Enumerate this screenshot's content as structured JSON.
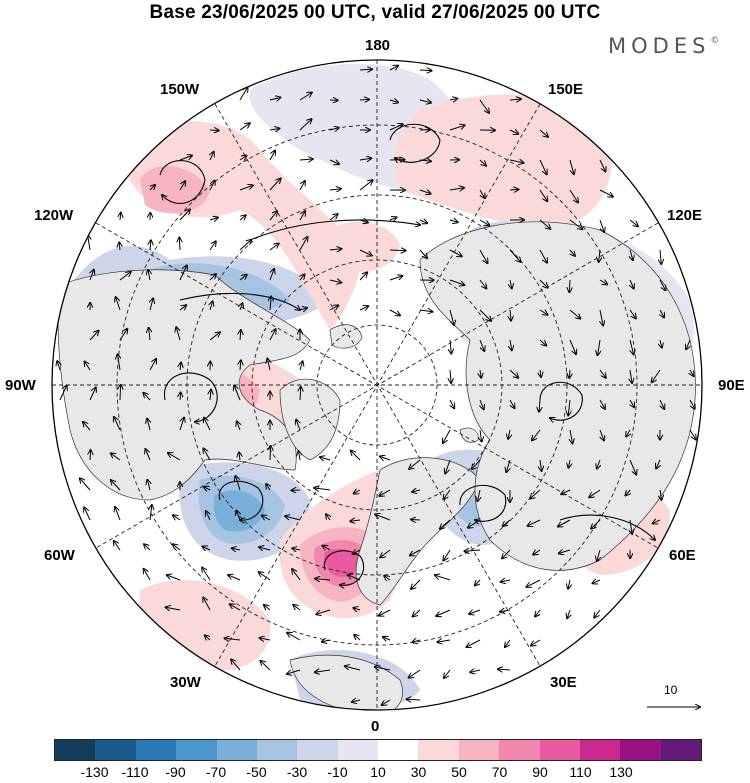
{
  "header": {
    "title": "Base 23/06/2025 00 UTC, valid 27/06/2025 00 UTC",
    "brand": "MODES"
  },
  "map": {
    "projection": "north-polar-stereographic",
    "longitude_labels": {
      "top": "180",
      "top_left": "150W",
      "top_right": "150E",
      "upper_left": "120W",
      "upper_right": "120E",
      "left": "90W",
      "right": "90E",
      "lower_left": "60W",
      "lower_right": "60E",
      "bottom_left": "30W",
      "bottom_right": "30E",
      "bottom": "0"
    },
    "wind_reference_vector": "10",
    "anomaly_centers": [
      {
        "region": "off-north-america-west-coast",
        "sign": "positive",
        "level": 30
      },
      {
        "region": "central-canada",
        "sign": "positive",
        "level": 90
      },
      {
        "region": "labrador-sea",
        "sign": "negative",
        "level": -70
      },
      {
        "region": "western-europe",
        "sign": "positive",
        "level": 70
      },
      {
        "region": "scandinavia-baltic",
        "sign": "negative",
        "level": -30
      },
      {
        "region": "central-siberia",
        "sign": "positive",
        "level": 50
      },
      {
        "region": "bering-sea",
        "sign": "positive",
        "level": 30
      }
    ]
  },
  "colorbar": {
    "colors": [
      "#153d5c",
      "#1b5a8c",
      "#2a78b5",
      "#4c96cb",
      "#79b0d9",
      "#a6c3e2",
      "#cdd5ea",
      "#e7e5f1",
      "#ffffff",
      "#fbd9d9",
      "#f6b3c0",
      "#f186ae",
      "#e95aa0",
      "#c9288e",
      "#9a1085",
      "#621b79"
    ],
    "tick_labels": [
      "-130",
      "-110",
      "-90",
      "-70",
      "-50",
      "-30",
      "-10",
      "10",
      "30",
      "50",
      "70",
      "90",
      "110",
      "130"
    ]
  }
}
